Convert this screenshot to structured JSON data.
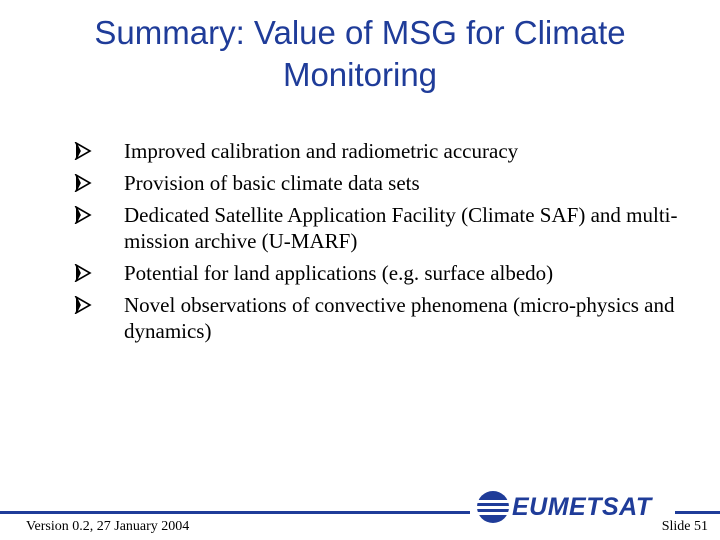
{
  "slide": {
    "title": "Summary: Value of MSG for Climate Monitoring",
    "bullets": [
      "Improved calibration and radiometric accuracy",
      "Provision of basic climate data sets",
      "Dedicated Satellite Application Facility (Climate SAF) and multi-mission archive (U-MARF)",
      "Potential for land applications (e.g. surface albedo)",
      "Novel observations of convective phenomena (micro-physics and dynamics)"
    ],
    "bullet_icon": "arrow-bullet-icon",
    "footer": {
      "version": "Version 0.2, 27 January 2004",
      "slide_number": "Slide 51",
      "logo_text": "EUMETSAT"
    },
    "colors": {
      "accent": "#1f3c99"
    }
  }
}
